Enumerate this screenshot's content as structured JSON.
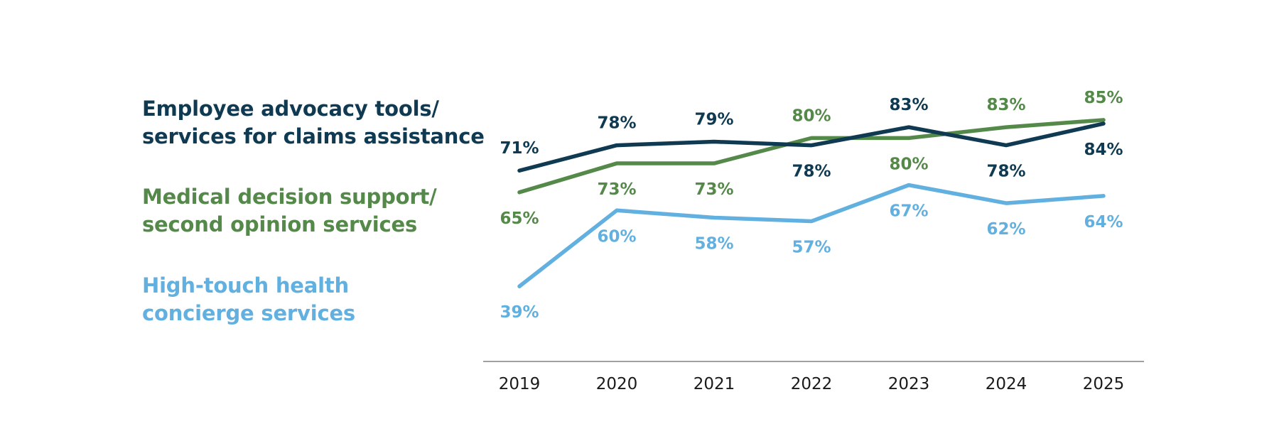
{
  "chart_data": {
    "type": "line",
    "categories": [
      "2019",
      "2020",
      "2021",
      "2022",
      "2023",
      "2024",
      "2025"
    ],
    "series": [
      {
        "name": "Employee advocacy tools/ services for claims assistance",
        "name_lines": [
          "Employee advocacy tools/",
          "services for claims assistance"
        ],
        "color": "#0f3a52",
        "values": [
          71,
          78,
          79,
          78,
          83,
          78,
          84
        ],
        "labels": [
          "71%",
          "78%",
          "79%",
          "78%",
          "83%",
          "78%",
          "84%"
        ],
        "label_side": [
          "above",
          "above",
          "above",
          "below",
          "above",
          "below",
          "below"
        ]
      },
      {
        "name": "Medical decision support/ second opinion services",
        "name_lines": [
          "Medical decision support/",
          "second opinion services"
        ],
        "color": "#54894a",
        "values": [
          65,
          73,
          73,
          80,
          80,
          83,
          85
        ],
        "labels": [
          "65%",
          "73%",
          "73%",
          "80%",
          "80%",
          "83%",
          "85%"
        ],
        "label_side": [
          "below",
          "below",
          "below",
          "above",
          "below",
          "above",
          "above"
        ]
      },
      {
        "name": "High-touch health concierge services",
        "name_lines": [
          "High-touch health",
          "concierge services"
        ],
        "color": "#62b0e0",
        "values": [
          39,
          60,
          58,
          57,
          67,
          62,
          64
        ],
        "labels": [
          "39%",
          "60%",
          "58%",
          "57%",
          "67%",
          "62%",
          "64%"
        ],
        "label_side": [
          "below",
          "below",
          "below",
          "below",
          "below",
          "below",
          "below"
        ]
      }
    ],
    "ylim": [
      20,
      95
    ],
    "legend_position": "left",
    "grid": false,
    "axis_color": "#808080"
  }
}
